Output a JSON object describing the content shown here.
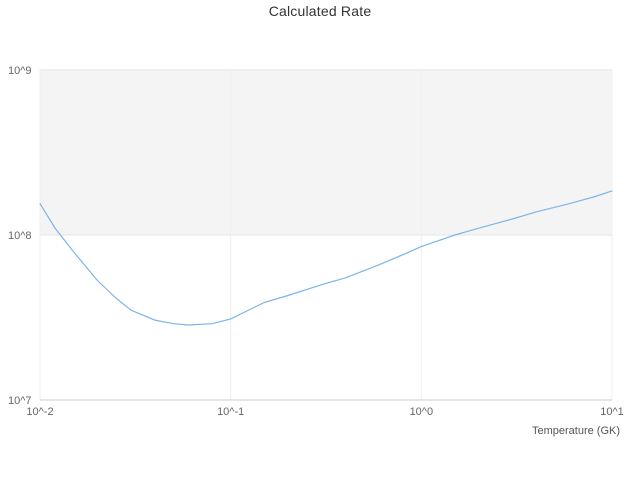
{
  "chart_data": {
    "type": "line",
    "title": "Calculated Rate",
    "xlabel": "Temperature (GK)",
    "ylabel": "",
    "x_scale": "log",
    "y_scale": "log",
    "xlim": [
      0.01,
      10
    ],
    "ylim": [
      10000000,
      1000000000
    ],
    "x_tick_labels": [
      "10^-2",
      "10^-1",
      "10^0",
      "10^1"
    ],
    "x_tick_values": [
      0.01,
      0.1,
      1,
      10
    ],
    "y_tick_labels": [
      "10^7",
      "10^8",
      "10^9"
    ],
    "y_tick_values": [
      10000000,
      100000000,
      1000000000
    ],
    "grid": true,
    "grid_color": "#e6e6e6",
    "minor_grid_color": "#efefef",
    "band": {
      "from": 100000000,
      "to": 1000000000,
      "color": "#f4f4f4"
    },
    "tick_color": "#666666",
    "title_color": "#333333",
    "legend": "none",
    "series": [
      {
        "name": "calculated-rate",
        "color": "#7cb5ec",
        "x": [
          0.01,
          0.012,
          0.015,
          0.02,
          0.025,
          0.03,
          0.04,
          0.05,
          0.06,
          0.08,
          0.1,
          0.15,
          0.2,
          0.3,
          0.4,
          0.6,
          0.8,
          1.0,
          1.5,
          2.0,
          3.0,
          4.0,
          6.0,
          8.0,
          10.0
        ],
        "y": [
          155000000,
          110000000,
          79000000,
          53000000,
          41500000,
          35000000,
          30500000,
          29000000,
          28500000,
          29000000,
          31000000,
          39000000,
          43000000,
          50000000,
          55000000,
          66000000,
          76000000,
          85000000,
          100000000,
          110000000,
          125000000,
          138000000,
          155000000,
          170000000,
          185000000
        ]
      }
    ]
  }
}
